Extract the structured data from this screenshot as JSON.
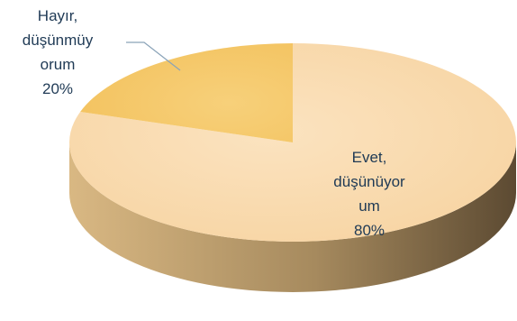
{
  "chart_data": {
    "type": "pie",
    "style": "3d",
    "legend": "none",
    "slices": [
      {
        "label_lines": [
          "Evet,",
          "düşünüyor",
          "um"
        ],
        "value": 80,
        "value_label": "80%",
        "color": "#f7d3a0"
      },
      {
        "label_lines": [
          "Hayır,",
          "düşünmüy",
          "orum"
        ],
        "value": 20,
        "value_label": "20%",
        "color": "#f3c25e"
      }
    ],
    "colors": {
      "side_light": "#d9b883",
      "side_dark": "#5c4a32",
      "leader_line": "#8aa3b8",
      "label_text": "#1f3a55"
    }
  }
}
